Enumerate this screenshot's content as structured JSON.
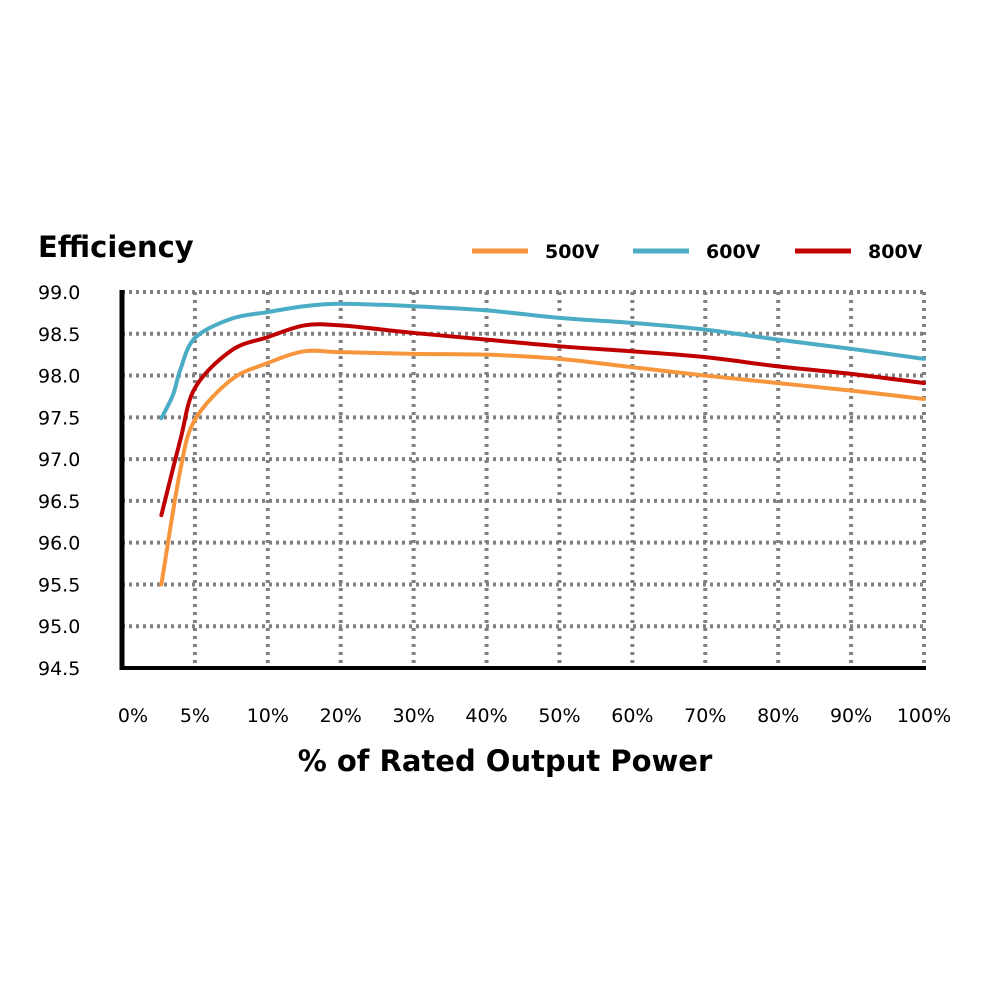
{
  "chart_data": {
    "type": "line",
    "title": "Efficiency",
    "xlabel": "% of Rated Output Power",
    "ylabel": "",
    "x_ticks": [
      "0%",
      "5%",
      "10%",
      "20%",
      "30%",
      "40%",
      "50%",
      "60%",
      "70%",
      "80%",
      "90%",
      "100%"
    ],
    "x_tick_values": [
      0,
      5,
      10,
      20,
      30,
      40,
      50,
      60,
      70,
      80,
      90,
      100
    ],
    "y_ticks": [
      "99.0",
      "98.5",
      "98.0",
      "97.5",
      "97.0",
      "96.5",
      "96.0",
      "95.5",
      "95.0",
      "94.5"
    ],
    "ylim": [
      94.5,
      99.0
    ],
    "xlim": [
      0,
      100
    ],
    "grid": true,
    "legend_position": "top-right",
    "series": [
      {
        "name": "500V",
        "color": "#f7963c",
        "x": [
          2.7,
          4,
          5,
          7.5,
          10,
          15,
          20,
          30,
          40,
          50,
          60,
          70,
          80,
          90,
          100
        ],
        "y": [
          95.5,
          96.87,
          97.47,
          97.95,
          98.15,
          98.29,
          98.28,
          98.26,
          98.25,
          98.2,
          98.1,
          98.0,
          97.91,
          97.82,
          97.72
        ]
      },
      {
        "name": "600V",
        "color": "#4bacc6",
        "x": [
          2.7,
          3.5,
          4,
          5,
          7.5,
          10,
          15,
          20,
          30,
          40,
          50,
          60,
          70,
          80,
          90,
          100
        ],
        "y": [
          97.49,
          97.77,
          98.07,
          98.45,
          98.68,
          98.76,
          98.83,
          98.86,
          98.83,
          98.78,
          98.69,
          98.63,
          98.55,
          98.43,
          98.32,
          98.2
        ]
      },
      {
        "name": "800V",
        "color": "#c00000",
        "x": [
          2.7,
          4,
          5,
          7.5,
          10,
          15,
          20,
          30,
          40,
          50,
          60,
          70,
          80,
          90,
          100
        ],
        "y": [
          96.33,
          97.23,
          97.85,
          98.3,
          98.46,
          98.6,
          98.6,
          98.51,
          98.43,
          98.35,
          98.29,
          98.22,
          98.11,
          98.02,
          97.91
        ]
      }
    ]
  }
}
